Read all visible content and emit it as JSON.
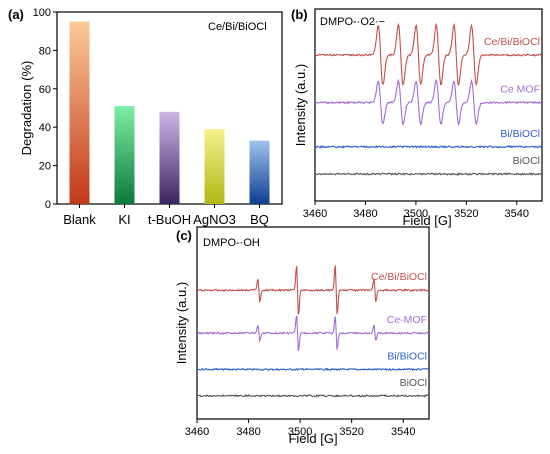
{
  "chart_data": [
    {
      "panel": "(a)",
      "type": "bar",
      "annotation": "Ce/Bi/BiOCl",
      "ylabel": "Degradation (%)",
      "ylim": [
        0,
        100
      ],
      "yticks": [
        "0",
        "20",
        "40",
        "60",
        "80",
        "100"
      ],
      "categories": [
        "Blank",
        "KI",
        "t-BuOH",
        "AgNO3",
        "BQ"
      ],
      "values": [
        95,
        51,
        48,
        39,
        33
      ],
      "colors": [
        [
          "#fbc99a",
          "#c2381a"
        ],
        [
          "#7cf0a4",
          "#0a7a3a"
        ],
        [
          "#cdb7e8",
          "#3c2462"
        ],
        [
          "#f7f08f",
          "#b3b814"
        ],
        [
          "#9ec3f0",
          "#0d3e8f"
        ]
      ]
    },
    {
      "panel": "(b)",
      "type": "line",
      "annotation": "DMPO-·O2·−",
      "xlabel": "Field [G]",
      "ylabel": "Intensity (a.u.)",
      "xlim": [
        3460,
        3550
      ],
      "xticks": [
        "3460",
        "3480",
        "3500",
        "3520",
        "3540"
      ],
      "series": [
        {
          "name": "Ce/Bi/BiOCl",
          "color": "#c0504d",
          "peaks": [
            3486,
            3494,
            3501,
            3509,
            3516,
            3523
          ],
          "amplitude": 1.0,
          "baseline": 4
        },
        {
          "name": "Ce MOF",
          "color": "#a36ad6",
          "peaks": [
            3486,
            3494,
            3501,
            3509,
            3516,
            3523
          ],
          "amplitude": 0.72,
          "baseline": 2.6
        },
        {
          "name": "Bi/BiOCl",
          "color": "#2c5fd4",
          "peaks": [],
          "amplitude": 0,
          "baseline": 1.3
        },
        {
          "name": "BiOCl",
          "color": "#555555",
          "peaks": [],
          "amplitude": 0,
          "baseline": 0.5
        }
      ]
    },
    {
      "panel": "(c)",
      "type": "line",
      "annotation": "DMPO-·OH",
      "xlabel": "Field [G]",
      "ylabel": "Intensity (a.u.)",
      "xlim": [
        3460,
        3550
      ],
      "xticks": [
        "3460",
        "3480",
        "3500",
        "3520",
        "3540"
      ],
      "series": [
        {
          "name": "Ce/Bi/BiOCl",
          "color": "#c0504d",
          "peaks": [
            3484,
            3499,
            3514,
            3529
          ],
          "peak_amp": [
            0.45,
            1.0,
            1.0,
            0.45
          ],
          "baseline": 3.6
        },
        {
          "name": "Ce-MOF",
          "color": "#a36ad6",
          "peaks": [
            3484,
            3499,
            3514,
            3529
          ],
          "peak_amp": [
            0.3,
            0.7,
            0.7,
            0.3
          ],
          "baseline": 2.3
        },
        {
          "name": "Bi/BiOCl",
          "color": "#2c5fd4",
          "peaks": [],
          "peak_amp": [],
          "baseline": 1.2
        },
        {
          "name": "BiOCl",
          "color": "#555555",
          "peaks": [],
          "peak_amp": [],
          "baseline": 0.4
        }
      ]
    }
  ]
}
